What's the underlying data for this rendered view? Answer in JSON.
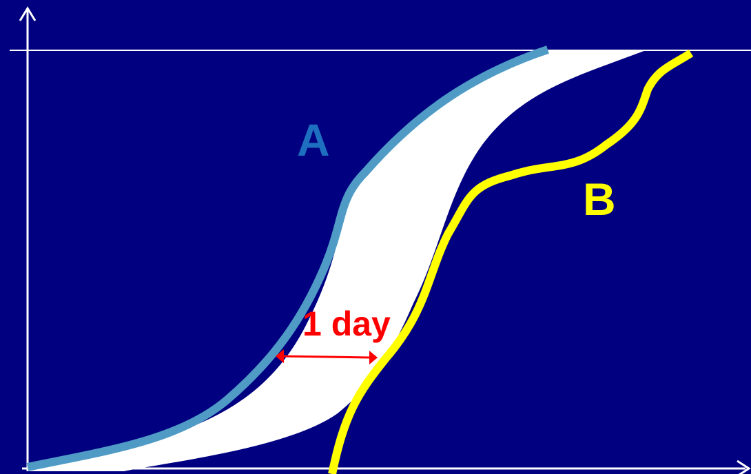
{
  "labels": {
    "curve_a": "A",
    "curve_b": "B",
    "gap": "1 day"
  },
  "colors": {
    "background": "#000080",
    "axes": "#ffffff",
    "band": "#ffffff",
    "curve_a_line": "#4f9bc5",
    "curve_a_label": "#1e6fc0",
    "curve_b_line": "#ffff00",
    "curve_b_label": "#ffff00",
    "gap_marker": "#ff0000"
  }
}
